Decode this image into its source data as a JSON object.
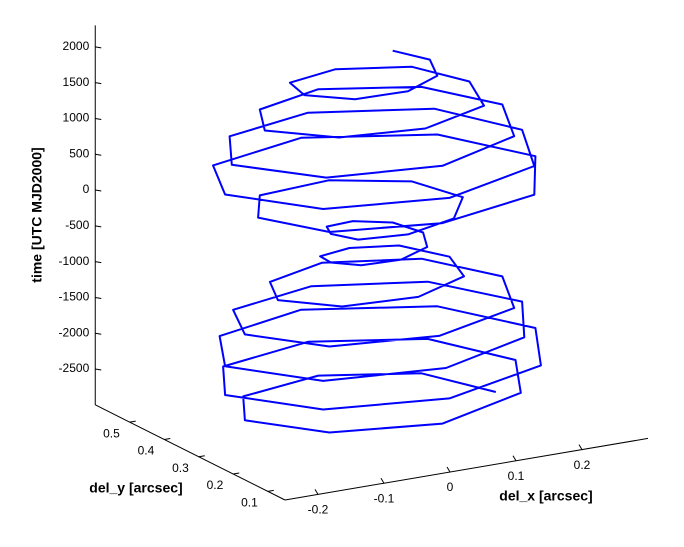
{
  "chart_data": {
    "type": "line3d",
    "xlabel": "del_x [arcsec]",
    "ylabel": "del_y [arcsec]",
    "zlabel": "time [UTC MJD2000]",
    "color": "#0000ff",
    "xlim": [
      -0.25,
      0.3
    ],
    "ylim": [
      0.05,
      0.6
    ],
    "zlim": [
      -3000,
      2300
    ],
    "xticks": [
      -0.2,
      -0.1,
      0,
      0.1,
      0.2
    ],
    "yticks": [
      0.1,
      0.2,
      0.3,
      0.4,
      0.5
    ],
    "zticks": [
      -2500,
      -2000,
      -1500,
      -1000,
      -500,
      0,
      500,
      1000,
      1500,
      2000
    ],
    "x": [
      0.2,
      0.15,
      0.02,
      -0.12,
      -0.18,
      -0.12,
      0.02,
      0.17,
      0.23,
      0.17,
      0.02,
      -0.14,
      -0.21,
      -0.14,
      0.02,
      0.19,
      0.26,
      0.19,
      0.02,
      -0.14,
      -0.21,
      -0.14,
      0.02,
      0.17,
      0.24,
      0.17,
      0.02,
      -0.13,
      -0.18,
      -0.12,
      0.02,
      0.16,
      0.21,
      0.15,
      0.02,
      -0.09,
      -0.13,
      -0.08,
      0.02,
      0.11,
      0.13,
      0.09,
      0.02,
      -0.04,
      -0.05,
      -0.03,
      0.02,
      0.07,
      0.09,
      0.07,
      0.02,
      -0.03,
      -0.05,
      -0.04,
      0.02,
      0.1,
      0.15,
      0.12,
      0.02,
      -0.1,
      -0.16,
      -0.12,
      0.02,
      0.18,
      0.26,
      0.19,
      0.02,
      -0.15,
      -0.21,
      -0.14,
      0.02,
      0.18,
      0.24,
      0.18,
      0.02,
      -0.13,
      -0.2,
      -0.13,
      0.02,
      0.16,
      0.21,
      0.15,
      0.02,
      -0.1,
      -0.15,
      -0.09,
      0.02,
      0.13,
      0.16,
      0.12,
      0.02,
      -0.07,
      -0.09,
      -0.05,
      0.02,
      0.08,
      0.1,
      0.07
    ],
    "y": [
      0.3,
      0.42,
      0.47,
      0.42,
      0.3,
      0.17,
      0.11,
      0.17,
      0.3,
      0.44,
      0.5,
      0.44,
      0.3,
      0.15,
      0.09,
      0.15,
      0.3,
      0.45,
      0.52,
      0.45,
      0.3,
      0.15,
      0.1,
      0.16,
      0.3,
      0.44,
      0.49,
      0.43,
      0.3,
      0.17,
      0.12,
      0.17,
      0.3,
      0.42,
      0.46,
      0.4,
      0.3,
      0.21,
      0.18,
      0.22,
      0.3,
      0.37,
      0.38,
      0.35,
      0.3,
      0.25,
      0.23,
      0.25,
      0.3,
      0.35,
      0.37,
      0.35,
      0.3,
      0.24,
      0.21,
      0.23,
      0.3,
      0.39,
      0.44,
      0.41,
      0.3,
      0.17,
      0.11,
      0.15,
      0.3,
      0.45,
      0.52,
      0.45,
      0.3,
      0.15,
      0.09,
      0.15,
      0.3,
      0.44,
      0.5,
      0.44,
      0.3,
      0.16,
      0.11,
      0.17,
      0.3,
      0.42,
      0.47,
      0.41,
      0.3,
      0.2,
      0.16,
      0.2,
      0.3,
      0.39,
      0.42,
      0.38,
      0.3,
      0.23,
      0.21,
      0.24,
      0.3,
      0.35
    ],
    "z": [
      -2800,
      -2750,
      -2700,
      -2650,
      -2600,
      -2550,
      -2500,
      -2450,
      -2400,
      -2350,
      -2300,
      -2250,
      -2200,
      -2150,
      -2100,
      -2050,
      -2000,
      -1950,
      -1900,
      -1850,
      -1800,
      -1750,
      -1700,
      -1650,
      -1600,
      -1550,
      -1500,
      -1450,
      -1400,
      -1350,
      -1300,
      -1250,
      -1200,
      -1150,
      -1100,
      -1050,
      -1000,
      -950,
      -900,
      -850,
      -800,
      -750,
      -700,
      -650,
      -600,
      -550,
      -500,
      -450,
      -400,
      -350,
      -300,
      -250,
      -200,
      -150,
      -100,
      -50,
      0,
      50,
      100,
      150,
      200,
      250,
      300,
      350,
      400,
      450,
      500,
      550,
      600,
      650,
      700,
      750,
      800,
      850,
      900,
      950,
      1000,
      1050,
      1100,
      1150,
      1200,
      1250,
      1300,
      1350,
      1400,
      1450,
      1500,
      1550,
      1600,
      1650,
      1700,
      1750,
      1800,
      1850,
      1900,
      1950,
      2000,
      2050
    ]
  }
}
